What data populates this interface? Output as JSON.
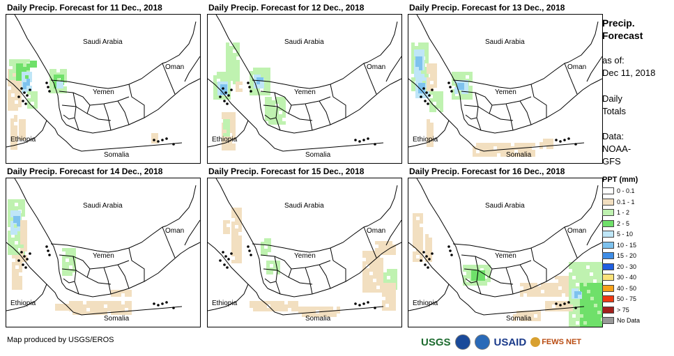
{
  "panels": [
    {
      "title": "Daily Precip. Forecast for 11 Dec., 2018",
      "variant": "p1"
    },
    {
      "title": "Daily Precip. Forecast for 12 Dec., 2018",
      "variant": "p2"
    },
    {
      "title": "Daily Precip. Forecast for 13 Dec., 2018",
      "variant": "p3"
    },
    {
      "title": "Daily Precip. Forecast for 14 Dec., 2018",
      "variant": "p4"
    },
    {
      "title": "Daily Precip. Forecast for 15 Dec., 2018",
      "variant": "p5"
    },
    {
      "title": "Daily Precip. Forecast for 16 Dec., 2018",
      "variant": "p6"
    }
  ],
  "map_labels": {
    "saudi": "Saudi Arabia",
    "oman": "Oman",
    "yemen": "Yemen",
    "ethiopia": "Ethiopia",
    "somalia": "Somalia"
  },
  "sidebar": {
    "title_line1": "Precip.",
    "title_line2": "Forecast",
    "asof_label": "as of:",
    "asof_date": "Dec 11, 2018",
    "daily_line1": "Daily",
    "daily_line2": "Totals",
    "data_line1": "Data:",
    "data_line2": "NOAA-",
    "data_line3": "GFS"
  },
  "legend": {
    "title": "PPT (mm)",
    "items": [
      {
        "label": "0 - 0.1",
        "color": "#ffffff"
      },
      {
        "label": "0.1 - 1",
        "color": "#f2dfc0"
      },
      {
        "label": "1 - 2",
        "color": "#bff2b0"
      },
      {
        "label": "2 - 5",
        "color": "#6fe06a"
      },
      {
        "label": "5 - 10",
        "color": "#bfe6f7"
      },
      {
        "label": "10 - 15",
        "color": "#7ec2ee"
      },
      {
        "label": "15 - 20",
        "color": "#3f8de6"
      },
      {
        "label": "20 - 30",
        "color": "#1f5fe0"
      },
      {
        "label": "30 - 40",
        "color": "#fbe27a"
      },
      {
        "label": "40 - 50",
        "color": "#f7a21b"
      },
      {
        "label": "50 - 75",
        "color": "#ee3a12"
      },
      {
        "label": "> 75",
        "color": "#a3201c"
      },
      {
        "label": "No Data",
        "color": "#999999"
      }
    ]
  },
  "footer": {
    "credit": "Map produced by USGS/EROS",
    "logo_usgs": "USGS",
    "logo_usaid": "USAID",
    "logo_fews": "FEWS NET"
  }
}
